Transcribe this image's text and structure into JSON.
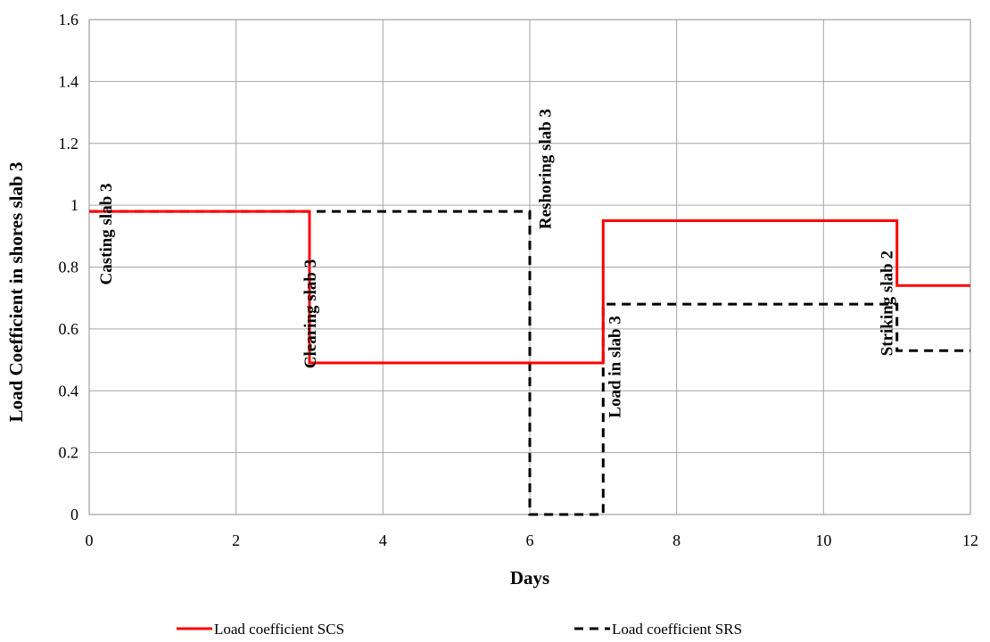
{
  "chart_data": {
    "type": "line",
    "xlabel": "Days",
    "ylabel": "Load Coefficient in shores slab 3",
    "xlim": [
      0,
      12
    ],
    "ylim": [
      0,
      1.6
    ],
    "xticks": [
      0,
      2,
      4,
      6,
      8,
      10,
      12
    ],
    "yticks": [
      0,
      0.2,
      0.4,
      0.6,
      0.8,
      1,
      1.2,
      1.4,
      1.6
    ],
    "grid": true,
    "legend_position": "bottom",
    "series": [
      {
        "name": "Load coefficient SCS",
        "color": "#ff0000",
        "style": "solid",
        "x": [
          0,
          3,
          3,
          7,
          7,
          11,
          11,
          12
        ],
        "y": [
          0.98,
          0.98,
          0.49,
          0.49,
          0.95,
          0.95,
          0.74,
          0.74
        ]
      },
      {
        "name": "Load coefficient SRS",
        "color": "#000000",
        "style": "dashed",
        "x": [
          0,
          6,
          6,
          7,
          7,
          11,
          11,
          12
        ],
        "y": [
          0.98,
          0.98,
          0,
          0,
          0.68,
          0.68,
          0.53,
          0.53
        ]
      }
    ],
    "annotations": [
      {
        "text": "Casting slab 3",
        "x": 0.22,
        "y": 0.8
      },
      {
        "text": "Clearing slab 3",
        "x": 3.0,
        "y": 0.53
      },
      {
        "text": "Reshoring slab 3",
        "x": 6.2,
        "y": 0.98
      },
      {
        "text": "Load in slab 3",
        "x": 7.15,
        "y": 0.37
      },
      {
        "text": "Striking slab 2",
        "x": 10.85,
        "y": 0.57
      }
    ]
  }
}
